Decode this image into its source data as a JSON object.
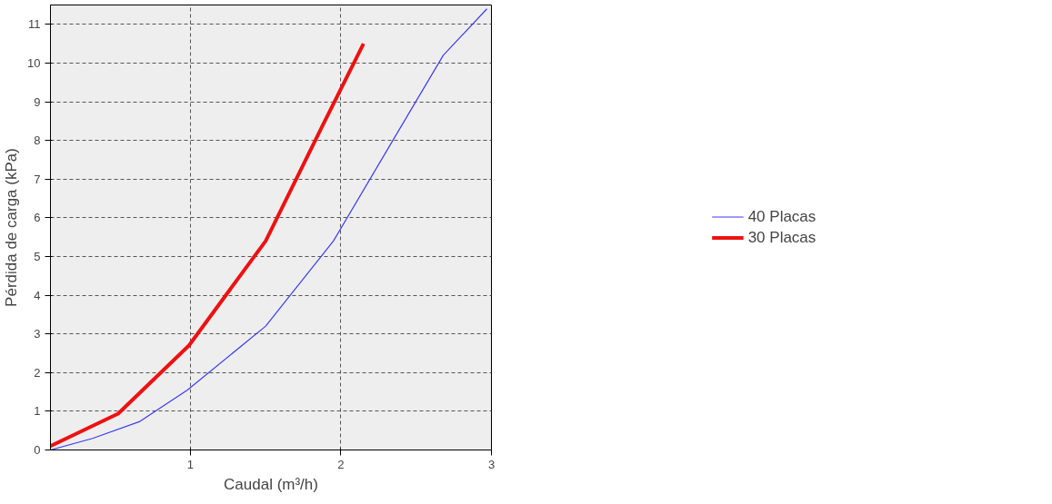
{
  "chart_data": {
    "type": "line",
    "xlabel": "Caudal (m³/h)",
    "ylabel": "Pérdida de carga (kPa)",
    "xlim": [
      0.07,
      3.0
    ],
    "ylim": [
      0,
      11.5
    ],
    "xticks": [
      1,
      2,
      3
    ],
    "yticks": [
      0,
      1,
      2,
      3,
      4,
      5,
      6,
      7,
      8,
      9,
      10,
      11
    ],
    "grid": true,
    "legend": "right",
    "marker": "none",
    "series": [
      {
        "name": "40 Placas",
        "color": "#3c3cf0",
        "x": [
          0.07,
          0.35,
          0.66,
          0.98,
          1.5,
          1.95,
          2.36,
          2.68,
          2.97
        ],
        "values": [
          0,
          0.3,
          0.73,
          1.55,
          3.2,
          5.4,
          8.1,
          10.2,
          11.4
        ]
      },
      {
        "name": "30 Placas",
        "color": "#ee1111",
        "x": [
          0.07,
          0.52,
          0.99,
          1.5,
          1.88,
          2.15
        ],
        "values": [
          0.1,
          0.94,
          2.7,
          5.4,
          8.4,
          10.5
        ]
      }
    ]
  }
}
